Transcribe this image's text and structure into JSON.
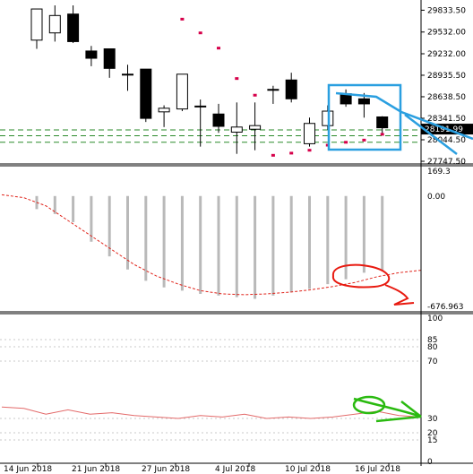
{
  "chart_data": [
    {
      "type": "candlestick",
      "panel": "price",
      "ylim": [
        27747.5,
        29900
      ],
      "y_ticks": [
        "29833.50",
        "29532.00",
        "29232.00",
        "28935.50",
        "28638.50",
        "28341.50",
        "28044.50",
        "27747.50"
      ],
      "current_price": "28191.99",
      "candles": [
        {
          "o": 29420,
          "h": 29850,
          "l": 29300,
          "c": 29850
        },
        {
          "o": 29520,
          "h": 29900,
          "l": 29400,
          "c": 29760
        },
        {
          "o": 29780,
          "h": 29900,
          "l": 29380,
          "c": 29400
        },
        {
          "o": 29270,
          "h": 29340,
          "l": 29060,
          "c": 29170
        },
        {
          "o": 29300,
          "h": 29300,
          "l": 28900,
          "c": 29030
        },
        {
          "o": 28950,
          "h": 29080,
          "l": 28720,
          "c": 28950
        },
        {
          "o": 29020,
          "h": 29020,
          "l": 28290,
          "c": 28340
        },
        {
          "o": 28430,
          "h": 28520,
          "l": 28220,
          "c": 28480
        },
        {
          "o": 28470,
          "h": 28950,
          "l": 28440,
          "c": 28950
        },
        {
          "o": 28510,
          "h": 28600,
          "l": 27950,
          "c": 28500
        },
        {
          "o": 28400,
          "h": 28540,
          "l": 28140,
          "c": 28230
        },
        {
          "o": 28150,
          "h": 28560,
          "l": 27850,
          "c": 28220
        },
        {
          "o": 28190,
          "h": 28560,
          "l": 27900,
          "c": 28240
        },
        {
          "o": 28740,
          "h": 28790,
          "l": 28540,
          "c": 28740
        },
        {
          "o": 28870,
          "h": 28970,
          "l": 28560,
          "c": 28610
        },
        {
          "o": 27990,
          "h": 28350,
          "l": 27950,
          "c": 28270
        },
        {
          "o": 28240,
          "h": 28520,
          "l": 28180,
          "c": 28440
        },
        {
          "o": 28680,
          "h": 28740,
          "l": 28500,
          "c": 28540
        },
        {
          "o": 28610,
          "h": 28690,
          "l": 28350,
          "c": 28540
        },
        {
          "o": 28360,
          "h": 28370,
          "l": 28130,
          "c": 28210
        }
      ],
      "psar": [
        null,
        null,
        null,
        null,
        null,
        null,
        null,
        null,
        29710,
        29520,
        29310,
        28890,
        28660,
        27830,
        27860,
        27900,
        27970,
        28010,
        28040,
        28120
      ],
      "levels": [
        28180,
        28100,
        28010
      ]
    },
    {
      "type": "histogram",
      "panel": "oscillator",
      "ylim": [
        -676.963,
        169.3
      ],
      "y_ticks": [
        "169.3",
        "0.00",
        "-676.963"
      ],
      "bars": [
        -80,
        -110,
        -160,
        -280,
        -370,
        -450,
        -520,
        -560,
        -580,
        -600,
        -610,
        -620,
        -630,
        -610,
        -590,
        -570,
        -540,
        -510,
        -470,
        -460
      ],
      "signal": [
        8,
        -10,
        -60,
        -150,
        -240,
        -330,
        -420,
        -490,
        -540,
        -580,
        -600,
        -605,
        -600,
        -590,
        -575,
        -555,
        -530,
        -495,
        -470,
        -455
      ]
    },
    {
      "type": "line",
      "panel": "rsi",
      "ylim": [
        0,
        100
      ],
      "y_ticks": [
        "100",
        "85",
        "80",
        "70",
        "30",
        "20",
        "15",
        "0"
      ],
      "values": [
        38,
        37,
        33,
        36,
        33,
        34,
        32,
        31,
        30,
        32,
        31,
        33,
        30,
        31,
        30,
        31,
        33,
        35,
        32,
        31
      ]
    }
  ],
  "x_axis": {
    "dates": [
      "14 Jun 2018",
      "21 Jun 2018",
      "27 Jun 2018",
      "4 Jul 2018",
      "10 Jul 2018",
      "16 Jul 2018"
    ]
  },
  "colors": {
    "bull": "#ffffff",
    "bear": "#000000",
    "psar": "#d6004a",
    "level": "#2a8a2a",
    "signal": "#e0241b",
    "histogram": "#b9b9b9",
    "rsi": "#e36a6a",
    "annotation_blue": "#2a9fe0",
    "annotation_red": "#e81a10",
    "annotation_green": "#2aba10"
  }
}
